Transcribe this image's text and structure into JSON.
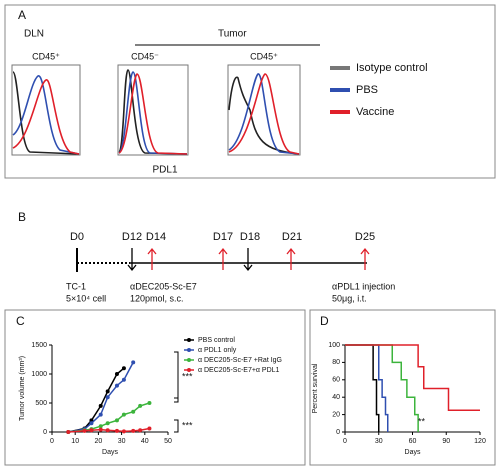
{
  "panel_a": {
    "label": "A",
    "group_left": "DLN",
    "group_right": "Tumor",
    "histograms": [
      {
        "label": "CD45⁺"
      },
      {
        "label": "CD45⁻"
      },
      {
        "label": "CD45⁺"
      }
    ],
    "legend": [
      "Isotype control",
      "PBS",
      "Vaccine"
    ],
    "x_label": "PDL1"
  },
  "panel_b": {
    "label": "B",
    "days": [
      "D0",
      "D12",
      "D14",
      "D17",
      "D18",
      "D21",
      "D25"
    ],
    "notes": [
      [
        "TC-1",
        "5×10⁴ cell"
      ],
      [
        "αDEC205-Sc-E7",
        "120pmol, s.c."
      ],
      [
        "αPDL1 injection",
        "50μg, i.t."
      ]
    ]
  },
  "chart_data": [
    {
      "type": "line",
      "panel_label": "C",
      "x_label": "Days",
      "y_label": "Tumor volume (mm³)",
      "x": [
        7,
        14,
        17,
        21,
        24,
        28,
        31,
        35,
        38,
        42
      ],
      "series": [
        {
          "name": "PBS control",
          "color": "#000000",
          "values": [
            0,
            60,
            200,
            450,
            700,
            1000,
            1100,
            null,
            null,
            null
          ]
        },
        {
          "name": "α PDL1 only",
          "color": "#2f4fb0",
          "values": [
            0,
            50,
            150,
            300,
            600,
            800,
            900,
            1200,
            null,
            null
          ]
        },
        {
          "name": "α DEC205-Sc-E7 +Rat IgG",
          "color": "#3cb43c",
          "values": [
            0,
            30,
            50,
            100,
            150,
            200,
            300,
            350,
            450,
            500
          ]
        },
        {
          "name": "α DEC205-Sc-E7+α PDL1",
          "color": "#e0202a",
          "values": [
            0,
            20,
            30,
            40,
            30,
            20,
            10,
            20,
            30,
            60
          ]
        }
      ],
      "xlim": [
        0,
        50
      ],
      "xticks": [
        0,
        10,
        20,
        30,
        40,
        50
      ],
      "ylim": [
        0,
        1500
      ],
      "yticks": [
        0,
        500,
        1000,
        1500
      ],
      "annotations": [
        "***",
        "***"
      ]
    },
    {
      "type": "step",
      "panel_label": "D",
      "x_label": "Days",
      "y_label": "Percent survival",
      "series": [
        {
          "color": "#000000",
          "x": [
            0,
            25,
            28,
            30
          ],
          "values": [
            100,
            60,
            20,
            0
          ]
        },
        {
          "color": "#2f4fb0",
          "x": [
            0,
            30,
            33,
            36,
            38
          ],
          "values": [
            100,
            60,
            40,
            20,
            0
          ]
        },
        {
          "color": "#3cb43c",
          "x": [
            0,
            42,
            50,
            55,
            62,
            65
          ],
          "values": [
            100,
            80,
            60,
            40,
            20,
            0
          ]
        },
        {
          "color": "#e0202a",
          "x": [
            0,
            65,
            70,
            92,
            120
          ],
          "values": [
            100,
            75,
            50,
            25,
            25
          ]
        }
      ],
      "xlim": [
        0,
        120
      ],
      "xticks": [
        0,
        30,
        60,
        90,
        120
      ],
      "ylim": [
        0,
        100
      ],
      "yticks": [
        0,
        20,
        40,
        60,
        80,
        100
      ],
      "annotations": [
        "**"
      ]
    }
  ]
}
